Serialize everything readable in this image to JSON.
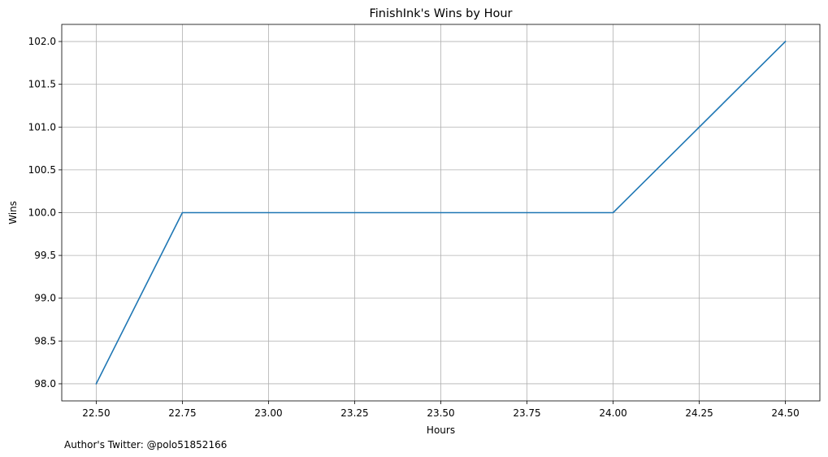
{
  "chart_data": {
    "type": "line",
    "title": "FinishInk's Wins by Hour",
    "xlabel": "Hours",
    "ylabel": "Wins",
    "x": [
      22.5,
      22.75,
      24.0,
      24.5
    ],
    "series": [
      {
        "values": [
          98,
          100,
          100,
          102
        ],
        "color": "#1f77b4"
      }
    ],
    "xlim": [
      22.4,
      24.6
    ],
    "ylim": [
      97.8,
      102.2
    ],
    "x_ticks": [
      22.5,
      22.75,
      23.0,
      23.25,
      23.5,
      23.75,
      24.0,
      24.25,
      24.5
    ],
    "x_tick_labels": [
      "22.50",
      "22.75",
      "23.00",
      "23.25",
      "23.50",
      "23.75",
      "24.00",
      "24.25",
      "24.50"
    ],
    "y_ticks": [
      98.0,
      98.5,
      99.0,
      99.5,
      100.0,
      100.5,
      101.0,
      101.5,
      102.0
    ],
    "y_tick_labels": [
      "98.0",
      "98.5",
      "99.0",
      "99.5",
      "100.0",
      "100.5",
      "101.0",
      "101.5",
      "102.0"
    ],
    "grid": true,
    "legend": "none"
  },
  "footer": {
    "note": "Author's Twitter: @polo51852166"
  }
}
